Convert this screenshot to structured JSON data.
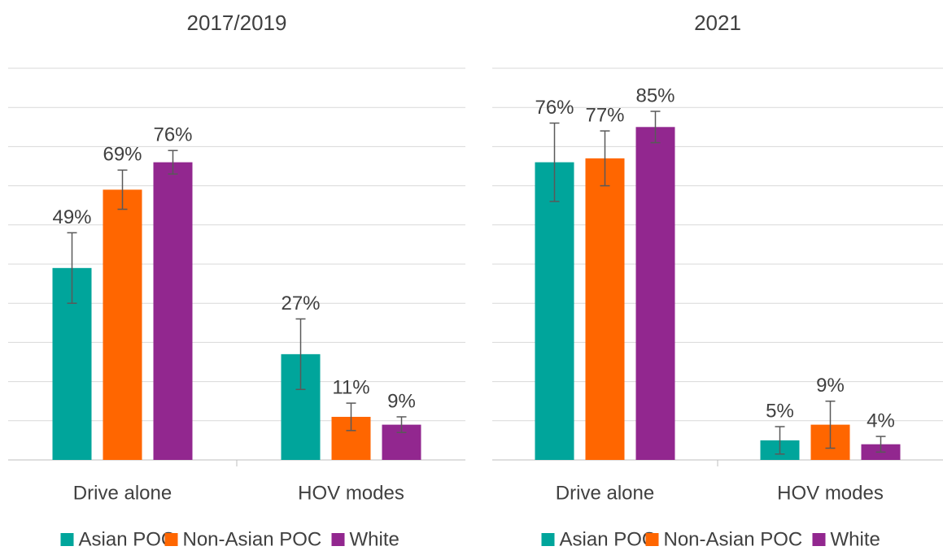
{
  "chart_data": [
    {
      "type": "bar",
      "title": "2017/2019",
      "categories": [
        "Drive alone",
        "HOV modes"
      ],
      "series": [
        {
          "name": "Asian POC",
          "color": "#00a59b",
          "values": [
            49,
            27
          ],
          "value_labels": [
            "49%",
            "27%"
          ],
          "errors": [
            9,
            9
          ]
        },
        {
          "name": "Non-Asian POC",
          "color": "#ff6600",
          "values": [
            69,
            11
          ],
          "value_labels": [
            "69%",
            "11%"
          ],
          "errors": [
            5,
            3.5
          ]
        },
        {
          "name": "White",
          "color": "#92278f",
          "values": [
            76,
            9
          ],
          "value_labels": [
            "76%",
            "9%"
          ],
          "errors": [
            3,
            2
          ]
        }
      ],
      "ylim": [
        0,
        100
      ],
      "yticks": [
        0,
        10,
        20,
        30,
        40,
        50,
        60,
        70,
        80,
        90,
        100
      ],
      "grid": true,
      "legend": "bottom"
    },
    {
      "type": "bar",
      "title": "2021",
      "categories": [
        "Drive alone",
        "HOV modes"
      ],
      "series": [
        {
          "name": "Asian POC",
          "color": "#00a59b",
          "values": [
            76,
            5
          ],
          "value_labels": [
            "76%",
            "5%"
          ],
          "errors": [
            10,
            3.5
          ]
        },
        {
          "name": "Non-Asian POC",
          "color": "#ff6600",
          "values": [
            77,
            9
          ],
          "value_labels": [
            "77%",
            "9%"
          ],
          "errors": [
            7,
            6
          ]
        },
        {
          "name": "White",
          "color": "#92278f",
          "values": [
            85,
            4
          ],
          "value_labels": [
            "85%",
            "4%"
          ],
          "errors": [
            4,
            2
          ]
        }
      ],
      "ylim": [
        0,
        100
      ],
      "yticks": [
        0,
        10,
        20,
        30,
        40,
        50,
        60,
        70,
        80,
        90,
        100
      ],
      "grid": true,
      "legend": "bottom"
    }
  ]
}
